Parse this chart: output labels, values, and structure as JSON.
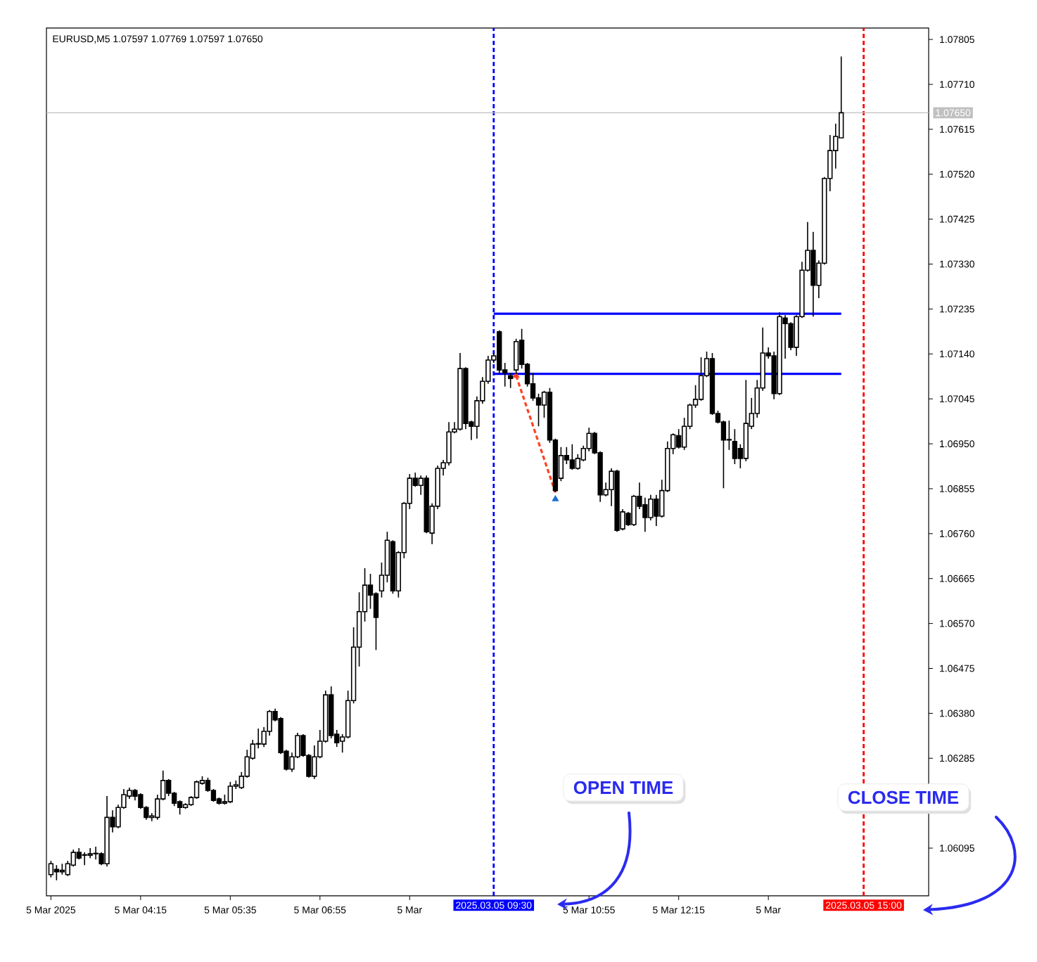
{
  "chart_data": {
    "type": "candlestick",
    "title": "EURUSD,M5 1.07597 1.07769 1.07597 1.07650",
    "color": "#000000",
    "x": [
      "2025-03-05T02:55",
      "2025-03-05T03:00",
      "2025-03-05T03:05",
      "2025-03-05T03:10",
      "2025-03-05T03:15",
      "2025-03-05T03:20",
      "2025-03-05T03:25",
      "2025-03-05T03:30",
      "2025-03-05T03:35",
      "2025-03-05T03:40",
      "2025-03-05T03:45",
      "2025-03-05T03:50",
      "2025-03-05T03:55",
      "2025-03-05T04:00",
      "2025-03-05T04:05",
      "2025-03-05T04:10",
      "2025-03-05T04:15",
      "2025-03-05T04:20",
      "2025-03-05T04:25",
      "2025-03-05T04:30",
      "2025-03-05T04:35",
      "2025-03-05T04:40",
      "2025-03-05T04:45",
      "2025-03-05T04:50",
      "2025-03-05T04:55",
      "2025-03-05T05:00",
      "2025-03-05T05:05",
      "2025-03-05T05:10",
      "2025-03-05T05:15",
      "2025-03-05T05:20",
      "2025-03-05T05:25",
      "2025-03-05T05:30",
      "2025-03-05T05:35",
      "2025-03-05T05:40",
      "2025-03-05T05:45",
      "2025-03-05T05:50",
      "2025-03-05T05:55",
      "2025-03-05T06:00",
      "2025-03-05T06:05",
      "2025-03-05T06:10",
      "2025-03-05T06:15",
      "2025-03-05T06:20",
      "2025-03-05T06:25",
      "2025-03-05T06:30",
      "2025-03-05T06:35",
      "2025-03-05T06:40",
      "2025-03-05T06:45",
      "2025-03-05T06:50",
      "2025-03-05T06:55",
      "2025-03-05T07:00",
      "2025-03-05T07:05",
      "2025-03-05T07:10",
      "2025-03-05T07:15",
      "2025-03-05T07:20",
      "2025-03-05T07:25",
      "2025-03-05T07:30",
      "2025-03-05T07:35",
      "2025-03-05T07:40",
      "2025-03-05T07:45",
      "2025-03-05T07:50",
      "2025-03-05T07:55",
      "2025-03-05T08:00",
      "2025-03-05T08:05",
      "2025-03-05T08:10",
      "2025-03-05T08:15",
      "2025-03-05T08:20",
      "2025-03-05T08:25",
      "2025-03-05T08:30",
      "2025-03-05T08:35",
      "2025-03-05T08:40",
      "2025-03-05T08:45",
      "2025-03-05T08:50",
      "2025-03-05T08:55",
      "2025-03-05T09:00",
      "2025-03-05T09:05",
      "2025-03-05T09:10",
      "2025-03-05T09:15",
      "2025-03-05T09:20",
      "2025-03-05T09:25",
      "2025-03-05T09:30",
      "2025-03-05T09:35",
      "2025-03-05T09:40",
      "2025-03-05T09:45",
      "2025-03-05T09:50",
      "2025-03-05T09:55",
      "2025-03-05T10:00",
      "2025-03-05T10:05",
      "2025-03-05T10:10",
      "2025-03-05T10:15",
      "2025-03-05T10:20",
      "2025-03-05T10:25",
      "2025-03-05T10:30",
      "2025-03-05T10:35",
      "2025-03-05T10:40",
      "2025-03-05T10:45",
      "2025-03-05T10:50",
      "2025-03-05T10:55",
      "2025-03-05T11:00",
      "2025-03-05T11:05",
      "2025-03-05T11:10",
      "2025-03-05T11:15",
      "2025-03-05T11:20",
      "2025-03-05T11:25",
      "2025-03-05T11:30",
      "2025-03-05T11:35",
      "2025-03-05T11:40",
      "2025-03-05T11:45",
      "2025-03-05T11:50",
      "2025-03-05T11:55",
      "2025-03-05T12:00",
      "2025-03-05T12:05",
      "2025-03-05T12:10",
      "2025-03-05T12:15",
      "2025-03-05T12:20",
      "2025-03-05T12:25",
      "2025-03-05T12:30",
      "2025-03-05T12:35",
      "2025-03-05T12:40",
      "2025-03-05T12:45",
      "2025-03-05T12:50",
      "2025-03-05T12:55",
      "2025-03-05T13:00",
      "2025-03-05T13:05",
      "2025-03-05T13:10",
      "2025-03-05T13:15",
      "2025-03-05T13:20",
      "2025-03-05T13:25",
      "2025-03-05T13:30",
      "2025-03-05T13:35",
      "2025-03-05T13:40",
      "2025-03-05T13:45",
      "2025-03-05T13:50",
      "2025-03-05T13:55",
      "2025-03-05T14:00",
      "2025-03-05T14:05",
      "2025-03-05T14:10",
      "2025-03-05T14:15",
      "2025-03-05T14:20",
      "2025-03-05T14:25",
      "2025-03-05T14:30",
      "2025-03-05T14:35",
      "2025-03-05T14:40"
    ],
    "ohlc": [
      [
        1.06039,
        1.06068,
        1.06033,
        1.06062
      ],
      [
        1.0605,
        1.06059,
        1.06027,
        1.06045
      ],
      [
        1.06045,
        1.06062,
        1.06039,
        1.06048
      ],
      [
        1.06039,
        1.06068,
        1.06036,
        1.06062
      ],
      [
        1.06059,
        1.06092,
        1.06056,
        1.06086
      ],
      [
        1.06086,
        1.06095,
        1.06071,
        1.06074
      ],
      [
        1.0608,
        1.06086,
        1.06059,
        1.06081
      ],
      [
        1.0608,
        1.06095,
        1.06074,
        1.06083
      ],
      [
        1.06083,
        1.06098,
        1.06071,
        1.06084
      ],
      [
        1.06083,
        1.06086,
        1.06059,
        1.06062
      ],
      [
        1.06062,
        1.06205,
        1.06056,
        1.0616
      ],
      [
        1.0616,
        1.06175,
        1.06128,
        1.0614
      ],
      [
        1.0614,
        1.06187,
        1.06137,
        1.06181
      ],
      [
        1.06181,
        1.0622,
        1.06178,
        1.06208
      ],
      [
        1.06205,
        1.06223,
        1.06199,
        1.06217
      ],
      [
        1.06217,
        1.0622,
        1.06196,
        1.06205
      ],
      [
        1.06208,
        1.06211,
        1.06178,
        1.06181
      ],
      [
        1.06181,
        1.06184,
        1.06155,
        1.0616
      ],
      [
        1.0616,
        1.06169,
        1.06152,
        1.06163
      ],
      [
        1.0616,
        1.06208,
        1.06155,
        1.06199
      ],
      [
        1.06199,
        1.06259,
        1.06196,
        1.06238
      ],
      [
        1.06238,
        1.06241,
        1.06205,
        1.06211
      ],
      [
        1.06211,
        1.06214,
        1.06184,
        1.0619
      ],
      [
        1.06193,
        1.06196,
        1.06166,
        1.06181
      ],
      [
        1.06181,
        1.0619,
        1.06178,
        1.06187
      ],
      [
        1.06187,
        1.06205,
        1.06184,
        1.06202
      ],
      [
        1.06202,
        1.06238,
        1.06199,
        1.06235
      ],
      [
        1.06232,
        1.06247,
        1.06229,
        1.06238
      ],
      [
        1.06238,
        1.06244,
        1.06214,
        1.06217
      ],
      [
        1.06217,
        1.0622,
        1.06193,
        1.06196
      ],
      [
        1.06199,
        1.06202,
        1.06187,
        1.0619
      ],
      [
        1.0619,
        1.06208,
        1.06187,
        1.06193
      ],
      [
        1.06193,
        1.06235,
        1.0619,
        1.06226
      ],
      [
        1.06226,
        1.06238,
        1.0622,
        1.06229
      ],
      [
        1.06223,
        1.06256,
        1.0622,
        1.06247
      ],
      [
        1.06247,
        1.06303,
        1.06244,
        1.06288
      ],
      [
        1.06285,
        1.06324,
        1.06282,
        1.06315
      ],
      [
        1.06315,
        1.06348,
        1.06306,
        1.06316
      ],
      [
        1.06315,
        1.06351,
        1.06309,
        1.06342
      ],
      [
        1.06342,
        1.06387,
        1.06333,
        1.06384
      ],
      [
        1.06384,
        1.0639,
        1.06363,
        1.06366
      ],
      [
        1.06369,
        1.06372,
        1.06294,
        1.06297
      ],
      [
        1.063,
        1.06303,
        1.06259,
        1.06262
      ],
      [
        1.06262,
        1.06297,
        1.06256,
        1.06288
      ],
      [
        1.06288,
        1.06339,
        1.06285,
        1.06333
      ],
      [
        1.06333,
        1.06336,
        1.06288,
        1.06291
      ],
      [
        1.06291,
        1.06294,
        1.06244,
        1.06247
      ],
      [
        1.06247,
        1.06312,
        1.06241,
        1.06288
      ],
      [
        1.06288,
        1.06345,
        1.06285,
        1.06321
      ],
      [
        1.06321,
        1.06428,
        1.06318,
        1.06419
      ],
      [
        1.06419,
        1.06437,
        1.06327,
        1.06333
      ],
      [
        1.06336,
        1.06345,
        1.06309,
        1.06318
      ],
      [
        1.06321,
        1.06336,
        1.06297,
        1.0633
      ],
      [
        1.0633,
        1.06428,
        1.06327,
        1.06407
      ],
      [
        1.06407,
        1.06562,
        1.06401,
        1.0652
      ],
      [
        1.0652,
        1.06636,
        1.06479,
        1.06595
      ],
      [
        1.06595,
        1.06687,
        1.06574,
        1.06651
      ],
      [
        1.06651,
        1.06675,
        1.06601,
        1.0663
      ],
      [
        1.06633,
        1.06636,
        1.06514,
        1.06583
      ],
      [
        1.06639,
        1.06699,
        1.06625,
        1.06672
      ],
      [
        1.06672,
        1.06764,
        1.06657,
        1.06746
      ],
      [
        1.06743,
        1.06746,
        1.06633,
        1.06639
      ],
      [
        1.06639,
        1.06723,
        1.06625,
        1.0672
      ],
      [
        1.0672,
        1.06827,
        1.06708,
        1.06824
      ],
      [
        1.06824,
        1.06886,
        1.06812,
        1.06877
      ],
      [
        1.06877,
        1.06889,
        1.06859,
        1.06862
      ],
      [
        1.06862,
        1.06883,
        1.06842,
        1.06877
      ],
      [
        1.06877,
        1.06883,
        1.06761,
        1.06764
      ],
      [
        1.06761,
        1.06824,
        1.06738,
        1.06818
      ],
      [
        1.06818,
        1.06904,
        1.06812,
        1.06898
      ],
      [
        1.06898,
        1.06916,
        1.06883,
        1.0691
      ],
      [
        1.0691,
        1.06996,
        1.06904,
        1.06975
      ],
      [
        1.06975,
        1.06996,
        1.06972,
        1.06981
      ],
      [
        1.06981,
        1.07142,
        1.06978,
        1.07109
      ],
      [
        1.07109,
        1.07112,
        1.06981,
        1.06993
      ],
      [
        1.06996,
        1.06999,
        1.06958,
        1.06987
      ],
      [
        1.06987,
        1.0705,
        1.06961,
        1.07041
      ],
      [
        1.07041,
        1.07091,
        1.07035,
        1.07082
      ],
      [
        1.07082,
        1.07136,
        1.07077,
        1.07127
      ],
      [
        1.07127,
        1.07142,
        1.07121,
        1.07136
      ],
      [
        1.07187,
        1.0719,
        1.07097,
        1.07106
      ],
      [
        1.07106,
        1.07121,
        1.07071,
        1.071
      ],
      [
        1.07094,
        1.071,
        1.07068,
        1.07088
      ],
      [
        1.07106,
        1.07172,
        1.07097,
        1.07166
      ],
      [
        1.07169,
        1.07193,
        1.07109,
        1.07118
      ],
      [
        1.07118,
        1.07121,
        1.07071,
        1.07077
      ],
      [
        1.07077,
        1.071,
        1.07041,
        1.07047
      ],
      [
        1.07047,
        1.07056,
        1.06987,
        1.07032
      ],
      [
        1.07032,
        1.07062,
        1.07005,
        1.07059
      ],
      [
        1.07059,
        1.07068,
        1.06952,
        1.06958
      ],
      [
        1.06958,
        1.06961,
        1.06848,
        1.06851
      ],
      [
        1.06877,
        1.06943,
        1.06871,
        1.06925
      ],
      [
        1.06925,
        1.06943,
        1.06907,
        1.06916
      ],
      [
        1.06916,
        1.06949,
        1.06895,
        1.06898
      ],
      [
        1.06898,
        1.06928,
        1.06895,
        1.06919
      ],
      [
        1.06916,
        1.06946,
        1.06913,
        1.0694
      ],
      [
        1.0694,
        1.06984,
        1.06934,
        1.06972
      ],
      [
        1.06972,
        1.06975,
        1.06928,
        1.06931
      ],
      [
        1.06931,
        1.06934,
        1.06827,
        1.06842
      ],
      [
        1.06842,
        1.06868,
        1.06839,
        1.06853
      ],
      [
        1.06853,
        1.06898,
        1.06818,
        1.06892
      ],
      [
        1.06892,
        1.06895,
        1.06764,
        1.06767
      ],
      [
        1.0677,
        1.06812,
        1.06767,
        1.06806
      ],
      [
        1.06803,
        1.06806,
        1.06776,
        1.06779
      ],
      [
        1.06779,
        1.06842,
        1.06776,
        1.06839
      ],
      [
        1.06839,
        1.06868,
        1.06812,
        1.06818
      ],
      [
        1.06821,
        1.06836,
        1.06764,
        1.06794
      ],
      [
        1.06794,
        1.06842,
        1.06788,
        1.06833
      ],
      [
        1.06833,
        1.06842,
        1.06776,
        1.06797
      ],
      [
        1.06797,
        1.06874,
        1.06794,
        1.06851
      ],
      [
        1.06851,
        1.06955,
        1.06848,
        1.0694
      ],
      [
        1.0694,
        1.06972,
        1.06928,
        1.06969
      ],
      [
        1.06967,
        1.06981,
        1.0694,
        1.06943
      ],
      [
        1.06943,
        1.07005,
        1.06937,
        1.06987
      ],
      [
        1.06987,
        1.07035,
        1.06981,
        1.07032
      ],
      [
        1.07032,
        1.07074,
        1.07026,
        1.07044
      ],
      [
        1.07044,
        1.07133,
        1.07041,
        1.07094
      ],
      [
        1.07094,
        1.07145,
        1.07091,
        1.0713
      ],
      [
        1.0713,
        1.07142,
        1.07011,
        1.07014
      ],
      [
        1.07014,
        1.0702,
        1.06993,
        1.06996
      ],
      [
        1.06996,
        1.06999,
        1.06856,
        1.06958
      ],
      [
        1.06958,
        1.06999,
        1.06937,
        1.06959
      ],
      [
        1.06955,
        1.06981,
        1.06907,
        1.06919
      ],
      [
        1.0694,
        1.06949,
        1.06898,
        1.06919
      ],
      [
        1.06919,
        1.07085,
        1.06913,
        1.06993
      ],
      [
        1.06987,
        1.07047,
        1.06981,
        1.07014
      ],
      [
        1.07014,
        1.07085,
        1.07005,
        1.07068
      ],
      [
        1.07068,
        1.07196,
        1.07062,
        1.07142
      ],
      [
        1.07142,
        1.07154,
        1.0713,
        1.07136
      ],
      [
        1.07136,
        1.07145,
        1.07044,
        1.07056
      ],
      [
        1.07056,
        1.07228,
        1.07053,
        1.07219
      ],
      [
        1.07216,
        1.07222,
        1.0713,
        1.07204
      ],
      [
        1.07204,
        1.07207,
        1.07148,
        1.07154
      ],
      [
        1.07154,
        1.07222,
        1.07136,
        1.07219
      ],
      [
        1.07219,
        1.07335,
        1.07216,
        1.07317
      ],
      [
        1.07317,
        1.07419,
        1.07314,
        1.07359
      ],
      [
        1.07359,
        1.07398,
        1.07219,
        1.07285
      ],
      [
        1.07285,
        1.07338,
        1.07258,
        1.07332
      ],
      [
        1.07332,
        1.07514,
        1.07329,
        1.07511
      ],
      [
        1.07511,
        1.07603,
        1.07484,
        1.0757
      ],
      [
        1.0757,
        1.07627,
        1.07532,
        1.076
      ],
      [
        1.07597,
        1.07769,
        1.07597,
        1.0765
      ]
    ],
    "series": [
      {
        "type": "line",
        "color": "#0000ff",
        "x": [
          "2025-03-05T09:30",
          "2025-03-05T14:40"
        ],
        "values": [
          1.07225,
          1.07225
        ]
      },
      {
        "type": "line",
        "color": "#0000ff",
        "x": [
          "2025-03-05T09:30",
          "2025-03-05T14:40"
        ],
        "values": [
          1.07098,
          1.07098
        ]
      },
      {
        "type": "line",
        "color": "#ff4020",
        "line_style": "dashed",
        "x": [
          "2025-03-05T09:50",
          "2025-03-05T10:25"
        ],
        "values": [
          1.07094,
          1.06847
        ]
      },
      {
        "type": "scatter",
        "color": "#ff4020",
        "marker": "triangle",
        "x": [
          "2025-03-05T09:50"
        ],
        "values": [
          1.07094
        ]
      },
      {
        "type": "scatter",
        "color": "#1a6fcf",
        "marker": "triangle",
        "x": [
          "2025-03-05T10:25"
        ],
        "values": [
          1.06833
        ]
      }
    ],
    "xlim": [
      "2025-03-05T02:51",
      "2025-03-05T15:58"
    ],
    "xticks": [
      {
        "value": "2025-03-05T02:55",
        "label": "5 Mar 2025"
      },
      {
        "value": "2025-03-05T04:15",
        "label": "5 Mar 04:15"
      },
      {
        "value": "2025-03-05T05:35",
        "label": "5 Mar 05:35"
      },
      {
        "value": "2025-03-05T06:55",
        "label": "5 Mar 06:55"
      },
      {
        "value": "2025-03-05T08:15",
        "label": "5 Mar"
      },
      {
        "value": "2025-03-05T10:55",
        "label": "5 Mar 10:55"
      },
      {
        "value": "2025-03-05T12:15",
        "label": "5 Mar 12:15"
      },
      {
        "value": "2025-03-05T13:35",
        "label": "5 Mar"
      }
    ],
    "ylim": [
      1.05994,
      1.07829
    ],
    "yticks": [
      1.06095,
      {
        "value": 1.0619,
        "label": null
      },
      1.06285,
      {
        "value": 1.0638,
        "label": "1.06380"
      },
      1.06475,
      {
        "value": 1.0657,
        "label": "1.06570"
      },
      1.06665,
      {
        "value": 1.0676,
        "label": "1.06760"
      },
      1.06855,
      {
        "value": 1.0695,
        "label": "1.06950"
      },
      1.07045,
      {
        "value": 1.0714,
        "label": "1.07140"
      },
      1.07235,
      {
        "value": 1.0733,
        "label": "1.07330"
      },
      1.07425,
      {
        "value": 1.0752,
        "label": "1.07520"
      },
      1.07615,
      {
        "value": 1.0771,
        "label": "1.07710"
      },
      1.07805
    ],
    "ref_lines": [
      {
        "axis": "x",
        "value": "2025-03-05T09:30",
        "label": "2025.03.05 09:30",
        "color": "#0000ff",
        "line_style": "dashed"
      },
      {
        "axis": "x",
        "value": "2025-03-05T15:00",
        "label": "2025.03.05 15:00",
        "color": "#ff0000",
        "line_style": "dashed"
      },
      {
        "axis": "y",
        "value": 1.0765,
        "label": "1.07650",
        "color": "#c0c0c0"
      }
    ],
    "annotations": [
      "OPEN TIME",
      "CLOSE TIME"
    ]
  }
}
